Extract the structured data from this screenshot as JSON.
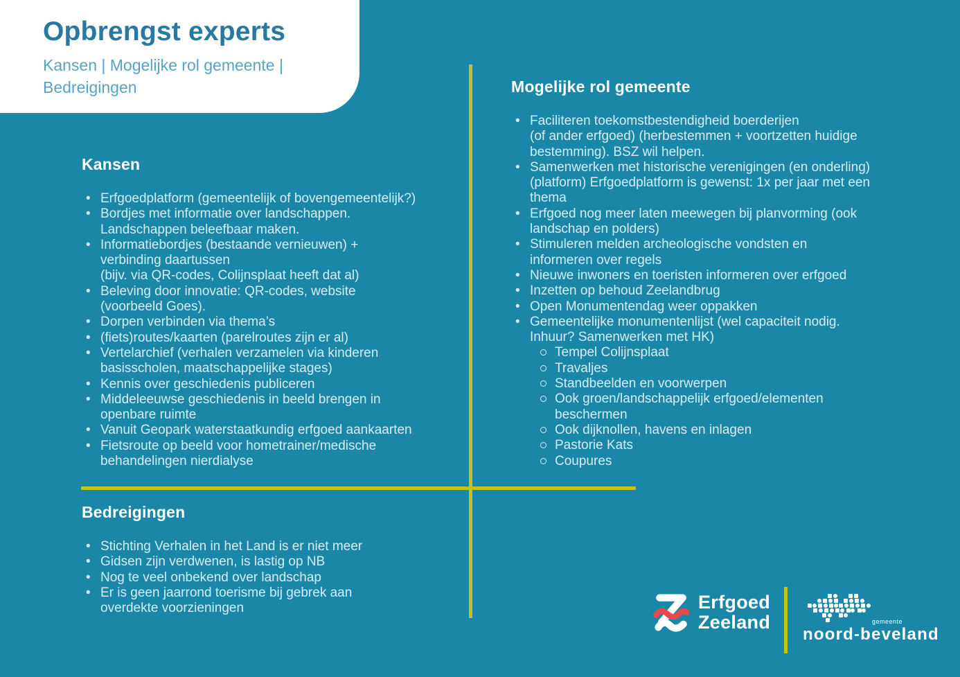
{
  "header": {
    "title": "Opbrengst experts",
    "subtitle": "Kansen | Mogelijke rol gemeente |\nBedreigingen"
  },
  "sections": {
    "kansen": {
      "heading": "Kansen",
      "items": [
        {
          "text": "Erfgoedplatform (gemeentelijk of bovengemeentelijk?)"
        },
        {
          "text": "Bordjes met informatie over landschappen.\nLandschappen beleefbaar maken."
        },
        {
          "text": "Informatiebordjes (bestaande vernieuwen) +\nverbinding daartussen\n(bijv. via QR-codes, Colijnsplaat heeft dat al)"
        },
        {
          "text": "Beleving door innovatie: QR-codes, website\n(voorbeeld Goes)."
        },
        {
          "text": "Dorpen verbinden via thema’s"
        },
        {
          "text": "(fiets)routes/kaarten (parelroutes zijn er al)"
        },
        {
          "text": "Vertelarchief (verhalen verzamelen via kinderen\nbasisscholen, maatschappelijke stages)"
        },
        {
          "text": "Kennis over geschiedenis publiceren"
        },
        {
          "text": "Middeleeuwse geschiedenis in beeld brengen in\nopenbare ruimte"
        },
        {
          "text": "Vanuit Geopark waterstaatkundig erfgoed aankaarten"
        },
        {
          "text": "Fietsroute op beeld voor hometrainer/medische\nbehandelingen nierdialyse"
        }
      ]
    },
    "rol": {
      "heading": "Mogelijke rol gemeente",
      "items": [
        {
          "text": "Faciliteren toekomstbestendigheid boerderijen\n(of ander erfgoed) (herbestemmen + voortzetten huidige\nbestemming). BSZ wil helpen."
        },
        {
          "text": "Samenwerken met historische verenigingen (en onderling)\n(platform) Erfgoedplatform is gewenst: 1x per jaar met een\nthema"
        },
        {
          "text": "Erfgoed nog meer laten meewegen bij planvorming (ook\nlandschap en polders)"
        },
        {
          "text": "Stimuleren melden archeologische vondsten en\ninformeren over regels"
        },
        {
          "text": "Nieuwe inwoners en toeristen informeren over erfgoed"
        },
        {
          "text": "Inzetten op behoud Zeelandbrug"
        },
        {
          "text": "Open Monumentendag weer oppakken"
        },
        {
          "text": "Gemeentelijke monumentenlijst (wel capaciteit nodig.\nInhuur? Samenwerken met HK)",
          "subitems": [
            "Tempel Colijnsplaat",
            "Travaljes",
            "Standbeelden en voorwerpen",
            "Ook groen/landschappelijk erfgoed/elementen\nbeschermen",
            "Ook dijknollen, havens en inlagen",
            "Pastorie Kats",
            "Coupures"
          ]
        }
      ]
    },
    "bedreigingen": {
      "heading": "Bedreigingen",
      "items": [
        {
          "text": "Stichting Verhalen in het Land is er niet meer"
        },
        {
          "text": "Gidsen zijn verdwenen, is lastig op NB"
        },
        {
          "text": "Nog te veel onbekend over landschap"
        },
        {
          "text": "Er is geen jaarrond toerisme bij gebrek aan\noverdekte voorzieningen"
        }
      ]
    }
  },
  "footer": {
    "erfgoed_zeeland_line1": "Erfgoed",
    "erfgoed_zeeland_line2": "Zeeland",
    "noord_beveland_gemeente": "gemeente",
    "noord_beveland_name": "noord-beveland"
  },
  "icons": {
    "erfgoed_zeeland": "erfgoed-zeeland-z-icon",
    "noord_beveland": "noord-beveland-island-icon"
  },
  "colors": {
    "background": "#1a87a8",
    "accent_line": "#c3c413",
    "title": "#2779a2",
    "subtitle": "#55a4c8",
    "body_text": "#d5edf6",
    "heading_text": "#ffffff",
    "logo_red": "#e8494c"
  }
}
